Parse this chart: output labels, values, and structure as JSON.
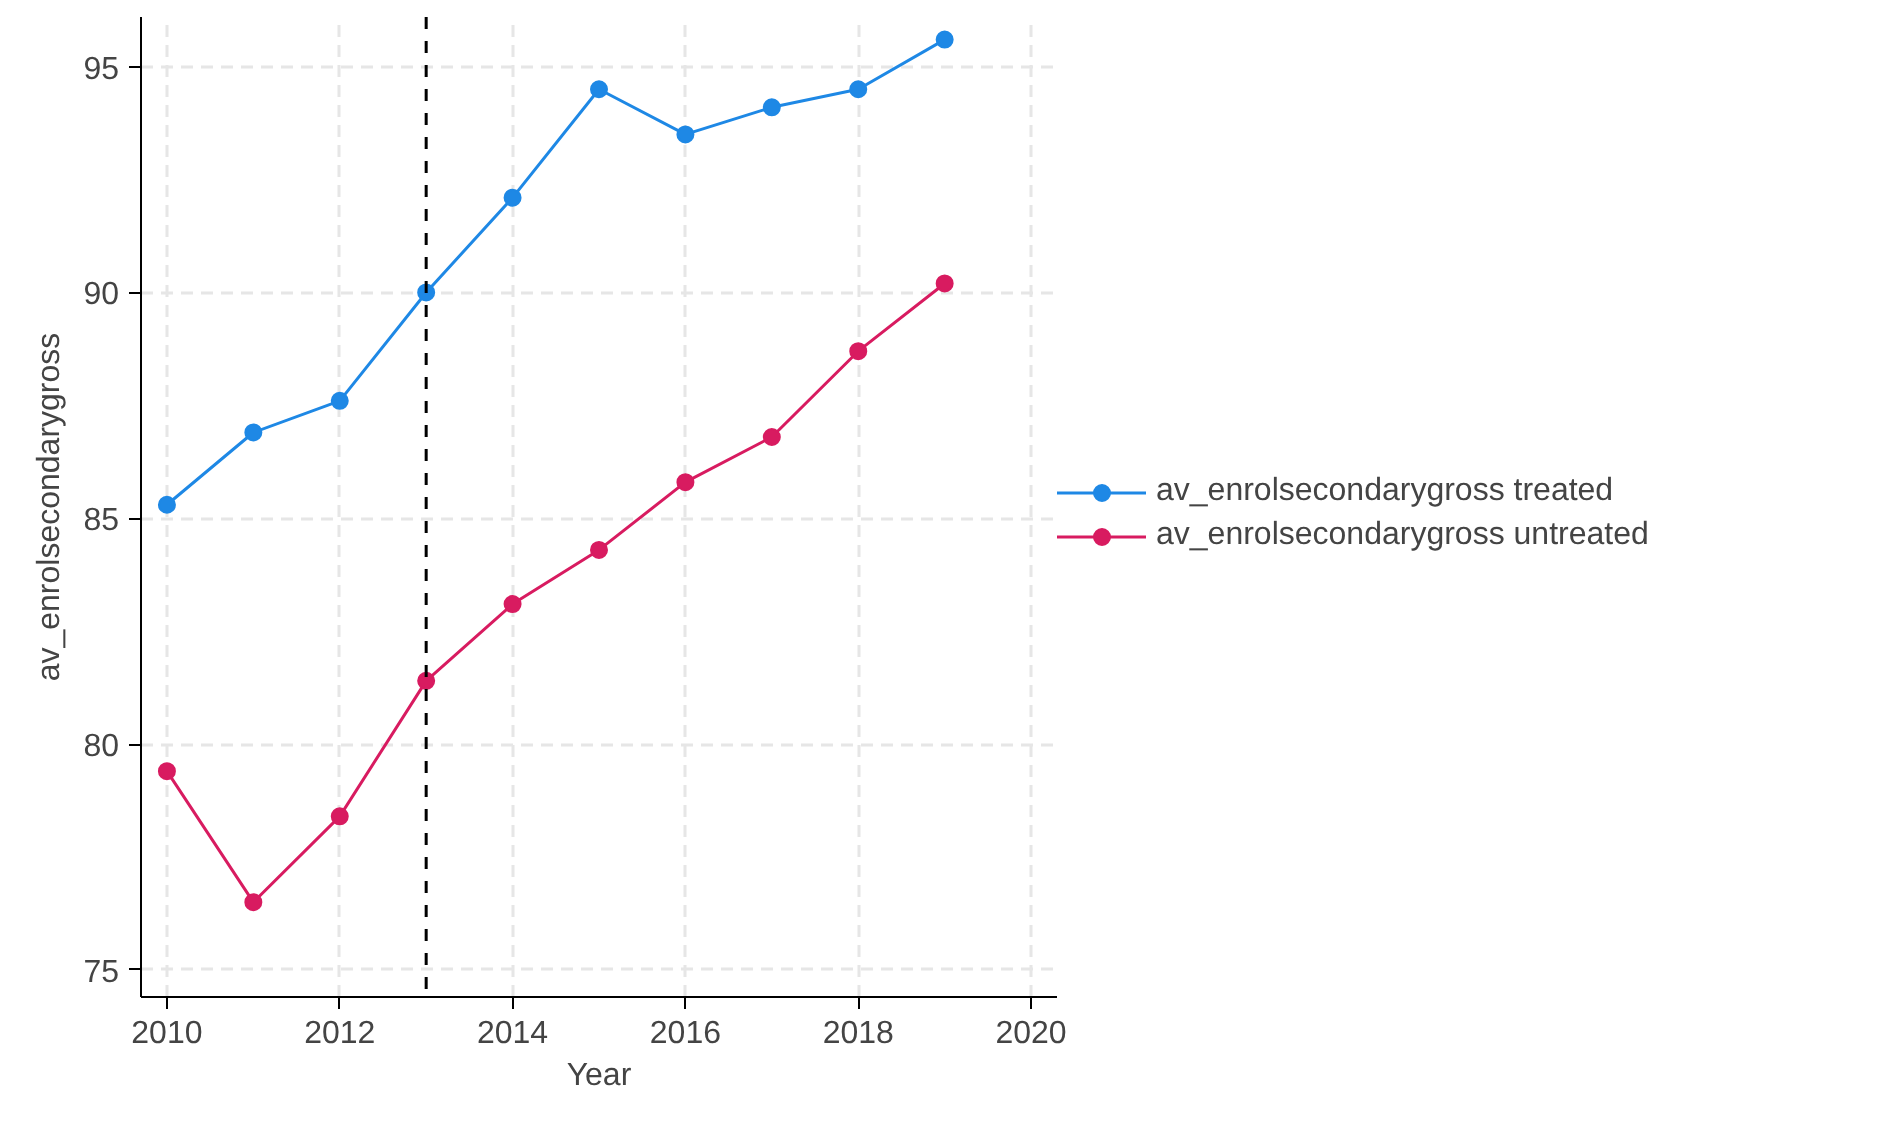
{
  "chart_data": {
    "type": "line",
    "xlabel": "Year",
    "ylabel": "av_enrolsecondarygross",
    "x": [
      2010,
      2011,
      2012,
      2013,
      2014,
      2015,
      2016,
      2017,
      2018,
      2019
    ],
    "series": [
      {
        "name": "av_enrolsecondarygross treated",
        "color": "#1e88e5",
        "values": [
          85.3,
          86.9,
          87.6,
          90.0,
          92.1,
          94.5,
          93.5,
          94.1,
          94.5,
          95.6
        ]
      },
      {
        "name": "av_enrolsecondarygross untreated",
        "color": "#d81b60",
        "values": [
          79.4,
          76.5,
          78.4,
          81.4,
          83.1,
          84.3,
          85.8,
          86.8,
          88.7,
          90.2
        ]
      }
    ],
    "xlim": [
      2009.7,
      2020.3
    ],
    "ylim": [
      74.4,
      96.1
    ],
    "xticks": [
      2010,
      2012,
      2014,
      2016,
      2018,
      2020
    ],
    "yticks": [
      75,
      80,
      85,
      90,
      95
    ],
    "ref_lines": [
      {
        "axis": "x",
        "value": 2013,
        "color": "#000000",
        "line_style": "dashed"
      }
    ],
    "grid": true,
    "legend": "right",
    "marker": "circle",
    "line_style": "solid"
  }
}
